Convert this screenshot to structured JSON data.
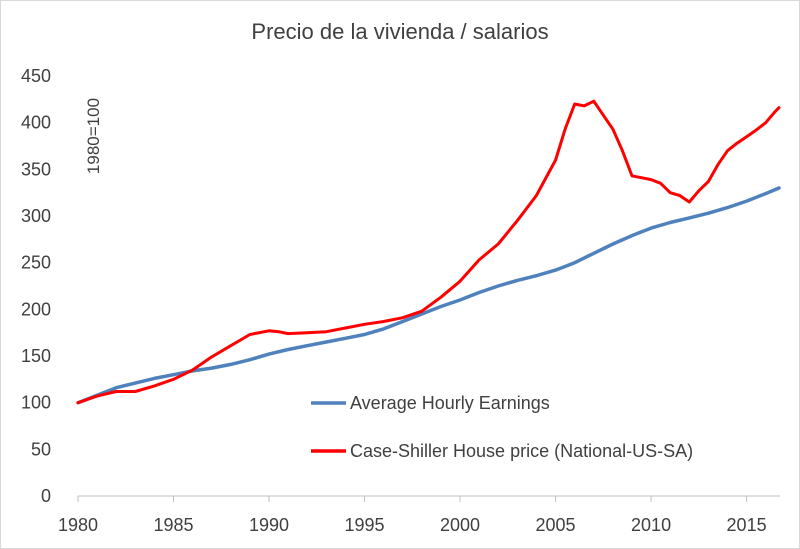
{
  "chart_data": {
    "type": "line",
    "title": "Precio de la vivienda / salarios",
    "ylabel": "1980=100",
    "xlabel": "",
    "xlim": [
      1980,
      2016.75
    ],
    "ylim": [
      0,
      450
    ],
    "x_ticks": [
      "1980",
      "1985",
      "1990",
      "1995",
      "2000",
      "2005",
      "2010",
      "2015"
    ],
    "y_ticks": [
      "0",
      "50",
      "100",
      "150",
      "200",
      "250",
      "300",
      "350",
      "400",
      "450"
    ],
    "grid": false,
    "legend_position": "center-right, inside plot",
    "series": [
      {
        "name": "Average Hourly Earnings",
        "color": "#4f81bd",
        "x": [
          1980,
          1981,
          1982,
          1983,
          1984,
          1985,
          1986,
          1987,
          1988,
          1989,
          1990,
          1991,
          1992,
          1993,
          1994,
          1995,
          1996,
          1997,
          1998,
          1999,
          2000,
          2001,
          2002,
          2003,
          2004,
          2005,
          2006,
          2007,
          2008,
          2009,
          2010,
          2011,
          2012,
          2013,
          2014,
          2015,
          2016,
          2016.7
        ],
        "y": [
          100,
          108,
          116,
          121,
          126,
          130,
          134,
          137,
          141,
          146,
          152,
          157,
          161,
          165,
          169,
          173,
          179,
          187,
          195,
          203,
          210,
          218,
          225,
          231,
          236,
          242,
          250,
          260,
          270,
          279,
          287,
          293,
          298,
          303,
          309,
          316,
          324,
          330
        ]
      },
      {
        "name": "Case-Shiller House price (National-US-SA)",
        "color": "#ff0000",
        "x": [
          1980,
          1981,
          1982,
          1983,
          1984,
          1985,
          1986,
          1987,
          1988,
          1989,
          1990,
          1990.5,
          1991,
          1992,
          1993,
          1994,
          1995,
          1996,
          1997,
          1998,
          1999,
          2000,
          2001,
          2002,
          2003,
          2004,
          2005,
          2005.5,
          2006,
          2006.5,
          2007,
          2007.5,
          2008,
          2008.5,
          2009,
          2009.5,
          2010,
          2010.5,
          2011,
          2011.5,
          2012,
          2012.5,
          2013,
          2013.5,
          2014,
          2014.5,
          2015,
          2015.5,
          2016,
          2016.5,
          2016.7
        ],
        "y": [
          100,
          107,
          112,
          112,
          118,
          125,
          135,
          149,
          161,
          173,
          177,
          176,
          174,
          175,
          176,
          180,
          184,
          187,
          191,
          198,
          213,
          230,
          253,
          270,
          295,
          322,
          360,
          393,
          420,
          418,
          423,
          408,
          393,
          370,
          343,
          341,
          339,
          335,
          325,
          322,
          315,
          327,
          337,
          355,
          370,
          378,
          385,
          392,
          400,
          412,
          416
        ]
      }
    ]
  }
}
